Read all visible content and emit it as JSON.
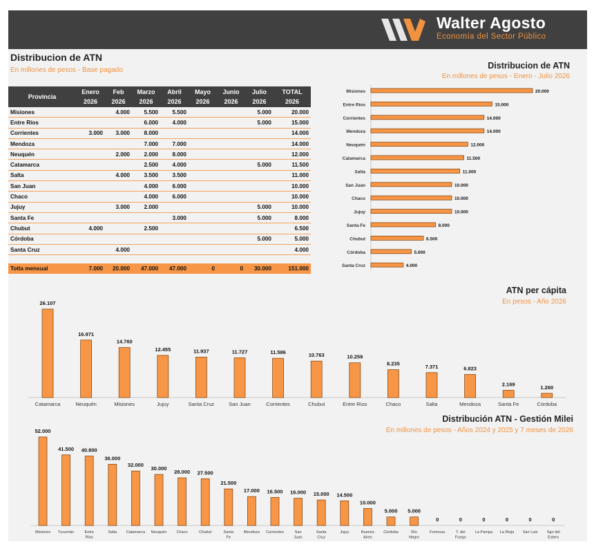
{
  "brand": {
    "name": "Walter Agosto",
    "subtitle": "Economía del Sector Público"
  },
  "colors": {
    "accent": "#f79646",
    "bar_border": "#8a4a14",
    "header_bg": "#404040",
    "panel_bg": "#f2f2f2"
  },
  "table_section": {
    "title": "Distribucion de ATN",
    "subtitle": "En millones de pesos - Base pagado",
    "headers": [
      [
        "Provincia",
        ""
      ],
      [
        "Enero",
        "2026"
      ],
      [
        "Feb",
        "2026"
      ],
      [
        "Marzo",
        "2026"
      ],
      [
        "Abril",
        "2026"
      ],
      [
        "Mayo",
        "2026"
      ],
      [
        "Junio",
        "2026"
      ],
      [
        "Julio",
        "2026"
      ],
      [
        "TOTAL",
        "2026"
      ]
    ],
    "rows": [
      [
        "Misiones",
        "",
        "4.000",
        "5.500",
        "5.500",
        "",
        "",
        "5.000",
        "20.000"
      ],
      [
        "Entre Ríos",
        "",
        "",
        "6.000",
        "4.000",
        "",
        "",
        "5.000",
        "15.000"
      ],
      [
        "Corrientes",
        "3.000",
        "3.000",
        "8.000",
        "",
        "",
        "",
        "",
        "14.000"
      ],
      [
        "Mendoza",
        "",
        "",
        "7.000",
        "7.000",
        "",
        "",
        "",
        "14.000"
      ],
      [
        "Neuquén",
        "",
        "2.000",
        "2.000",
        "8.000",
        "",
        "",
        "",
        "12.000"
      ],
      [
        "Catamarca",
        "",
        "",
        "2.500",
        "4.000",
        "",
        "",
        "5.000",
        "11.500"
      ],
      [
        "Salta",
        "",
        "4.000",
        "3.500",
        "3.500",
        "",
        "",
        "",
        "11.000"
      ],
      [
        "San Juan",
        "",
        "",
        "4.000",
        "6.000",
        "",
        "",
        "",
        "10.000"
      ],
      [
        "Chaco",
        "",
        "",
        "4.000",
        "6.000",
        "",
        "",
        "",
        "10.000"
      ],
      [
        "Jujuy",
        "",
        "3.000",
        "2.000",
        "",
        "",
        "",
        "5.000",
        "10.000"
      ],
      [
        "Santa Fe",
        "",
        "",
        "",
        "3.000",
        "",
        "",
        "5.000",
        "8.000"
      ],
      [
        "Chubut",
        "4.000",
        "",
        "2.500",
        "",
        "",
        "",
        "",
        "6.500"
      ],
      [
        "Córdoba",
        "",
        "",
        "",
        "",
        "",
        "",
        "5.000",
        "5.000"
      ],
      [
        "Santa Cruz",
        "",
        "4.000",
        "",
        "",
        "",
        "",
        "",
        "4.000"
      ]
    ],
    "total_row": [
      "Totla mensual",
      "7.000",
      "20.000",
      "47.000",
      "47.000",
      "0",
      "0",
      "30.000",
      "151.000"
    ]
  },
  "chart_data": [
    {
      "type": "bar",
      "orientation": "horizontal",
      "title": "Distribucion de ATN",
      "subtitle": "En millones de pesos - Enero - Julio 2026",
      "categories": [
        "Misiones",
        "Entre Ríos",
        "Corrientes",
        "Mendoza",
        "Neuquén",
        "Catamarca",
        "Salta",
        "San Juan",
        "Chaco",
        "Jujuy",
        "Santa Fe",
        "Chubut",
        "Córdoba",
        "Santa Cruz"
      ],
      "values": [
        20000,
        15000,
        14000,
        14000,
        12000,
        11500,
        11000,
        10000,
        10000,
        10000,
        8000,
        6500,
        5000,
        4000
      ],
      "labels": [
        "20.000",
        "15.000",
        "14.000",
        "14.000",
        "12.000",
        "11.500",
        "11.000",
        "10.000",
        "10.000",
        "10.000",
        "8.000",
        "6.500",
        "5.000",
        "4.000"
      ],
      "xlim": [
        0,
        20000
      ],
      "grid": false
    },
    {
      "type": "bar",
      "title": "ATN per cápita",
      "subtitle": "En pesos - Año 2026",
      "categories": [
        "Catamarca",
        "Neuquén",
        "Misiones",
        "Jujuy",
        "Santa Cruz",
        "San Juan",
        "Corrientes",
        "Chubut",
        "Entre Ríos",
        "Chaco",
        "Salta",
        "Mendoza",
        "Santa Fe",
        "Córdoba"
      ],
      "values": [
        26107,
        16971,
        14760,
        12455,
        11937,
        11727,
        11586,
        10763,
        10259,
        8235,
        7371,
        6823,
        2169,
        1260
      ],
      "labels": [
        "26.107",
        "16.971",
        "14.760",
        "12.455",
        "11.937",
        "11.727",
        "11.586",
        "10.763",
        "10.259",
        "8.235",
        "7.371",
        "6.823",
        "2.169",
        "1.260"
      ],
      "ylim": [
        0,
        26107
      ],
      "grid": false
    },
    {
      "type": "bar",
      "title": "Distribución ATN - Gestión Milei",
      "subtitle": "En millones de pesos - Años 2024 y 2025 y 7 meses de 2026",
      "categories": [
        [
          "Misiones"
        ],
        [
          "Tucumán"
        ],
        [
          "Entre",
          "Ríos"
        ],
        [
          "Salta"
        ],
        [
          "Catamarca"
        ],
        [
          "Neuquén"
        ],
        [
          "Chaco"
        ],
        [
          "Chubut"
        ],
        [
          "Santa",
          "Fe"
        ],
        [
          "Mendoza"
        ],
        [
          "Corrientes"
        ],
        [
          "San",
          "Juan"
        ],
        [
          "Santa",
          "Cruz"
        ],
        [
          "Jujuy"
        ],
        [
          "Buenos",
          "Aires"
        ],
        [
          "Córdoba"
        ],
        [
          "Río",
          "Negro"
        ],
        [
          "Formosa"
        ],
        [
          "T. del",
          "Fuego"
        ],
        [
          "La Pampa"
        ],
        [
          "La Rioja"
        ],
        [
          "San Luis"
        ],
        [
          "Sgo del",
          "Estero"
        ]
      ],
      "values": [
        52000,
        41500,
        40800,
        36000,
        32000,
        30000,
        28000,
        27500,
        21500,
        17000,
        16500,
        16000,
        15000,
        14500,
        10000,
        5000,
        5000,
        0,
        0,
        0,
        0,
        0,
        0
      ],
      "labels": [
        "52.000",
        "41.500",
        "40.800",
        "36.000",
        "32.000",
        "30.000",
        "28.000",
        "27.500",
        "21.500",
        "17.000",
        "16.500",
        "16.000",
        "15.000",
        "14.500",
        "10.000",
        "5.000",
        "5.000",
        "0",
        "0",
        "0",
        "0",
        "0",
        "0"
      ],
      "ylim": [
        0,
        52000
      ],
      "grid": false
    }
  ]
}
